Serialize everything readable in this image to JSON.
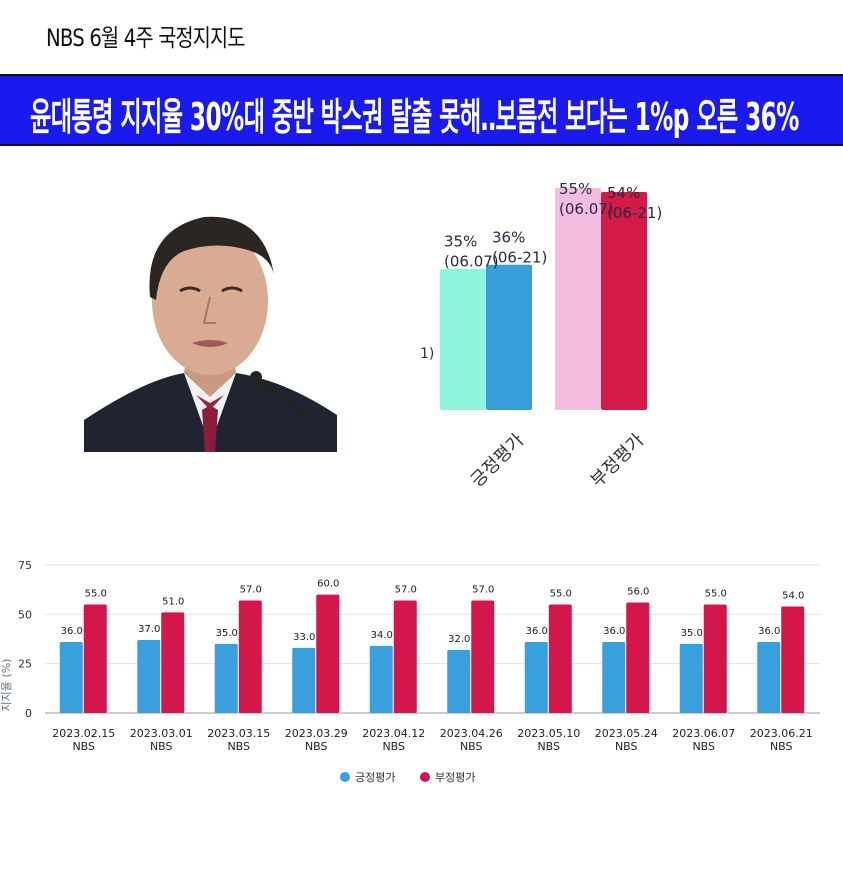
{
  "header": {
    "survey_label": "NBS 6월 4주 국정지지도",
    "headline": "윤대통령 지지율 30%대 중반 박스권 탈출 못해‥보름전 보다는 1%p 오른 36%"
  },
  "photo": {
    "icon": "president-portrait-icon"
  },
  "colors": {
    "banner": "#1a1aee",
    "positive_prev": "#8ff5dd",
    "positive_curr": "#389fdc",
    "negative_prev": "#f4bde0",
    "negative_curr": "#d41a46",
    "line_positive": "#3aa0dd",
    "line_negative": "#d4174a"
  },
  "chart_data": [
    {
      "type": "bar",
      "categories": [
        "긍정평가",
        "부정평가"
      ],
      "series": [
        {
          "name": "(06.07)",
          "values": [
            35,
            55
          ],
          "labels": [
            "35%\n(06.07)",
            "55%\n(06.07)"
          ]
        },
        {
          "name": "(06-21)",
          "values": [
            36,
            54
          ],
          "labels": [
            "36%\n(06-21)",
            "54%\n(06-21)"
          ]
        }
      ],
      "stray_label": "1)",
      "ylim": [
        0,
        55
      ]
    },
    {
      "type": "bar",
      "categories": [
        "2023.02.15\nNBS",
        "2023.03.01\nNBS",
        "2023.03.15\nNBS",
        "2023.03.29\nNBS",
        "2023.04.12\nNBS",
        "2023.04.26\nNBS",
        "2023.05.10\nNBS",
        "2023.05.24\nNBS",
        "2023.06.07\nNBS",
        "2023.06.21\nNBS"
      ],
      "series": [
        {
          "name": "긍정평가",
          "values": [
            36.0,
            37.0,
            35.0,
            33.0,
            34.0,
            32.0,
            36.0,
            36.0,
            35.0,
            36.0
          ],
          "labels": [
            "36.0",
            "37.0",
            "35.0",
            "33.0",
            "34.0",
            "32.0",
            "36.0",
            "36.0",
            "35.0",
            "36.0"
          ]
        },
        {
          "name": "부정평가",
          "values": [
            55.0,
            51.0,
            57.0,
            60.0,
            57.0,
            57.0,
            55.0,
            56.0,
            55.0,
            54.0
          ],
          "labels": [
            "55.0",
            "51.0",
            "57.0",
            "60.0",
            "57.0",
            "57.0",
            "55.0",
            "56.0",
            "55.0",
            "54.0"
          ]
        }
      ],
      "ylabel": "지지율 (%)",
      "ylim": [
        0,
        75
      ],
      "yticks": [
        "0",
        "25",
        "50",
        "75"
      ],
      "grid": true,
      "legend": "bottom"
    }
  ]
}
